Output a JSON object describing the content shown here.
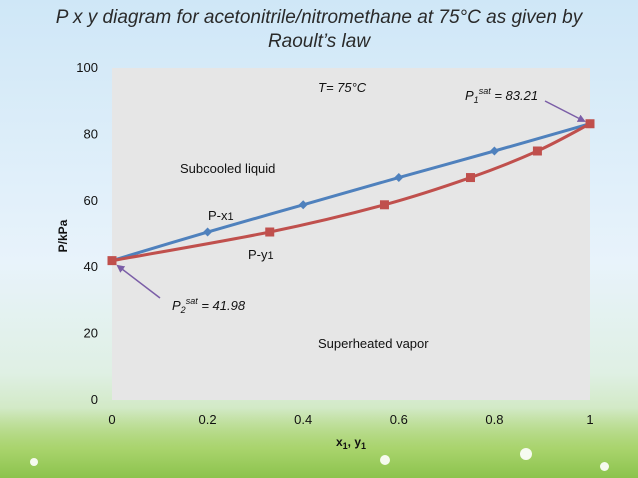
{
  "slide": {
    "title_line1": "P x y diagram for acetonitrile/nitromethane at 75°C as given by",
    "title_line2": "Raoult’s law"
  },
  "chart_data": {
    "type": "line",
    "ylabel": "P/kPa",
    "xlabel_base_1": "x",
    "xlabel_sub_1": "1",
    "xlabel_sep": ", ",
    "xlabel_base_2": "y",
    "xlabel_sub_2": "1",
    "xlim": [
      0,
      1
    ],
    "ylim": [
      0,
      100
    ],
    "x_ticks": [
      "0",
      "0.2",
      "0.4",
      "0.6",
      "0.8",
      "1"
    ],
    "y_ticks": [
      "0",
      "20",
      "40",
      "60",
      "80",
      "100"
    ],
    "grid": false,
    "series": [
      {
        "name": "P-x1",
        "color": "#4f81bd",
        "marker": "diamond",
        "points": [
          [
            0,
            41.98
          ],
          [
            0.2,
            50.6
          ],
          [
            0.4,
            58.8
          ],
          [
            0.6,
            67.0
          ],
          [
            0.8,
            75.0
          ],
          [
            1.0,
            83.21
          ]
        ]
      },
      {
        "name": "P-y1",
        "color": "#c0504d",
        "marker": "square",
        "points": [
          [
            0,
            41.98
          ],
          [
            0.33,
            50.6
          ],
          [
            0.57,
            58.8
          ],
          [
            0.75,
            67.0
          ],
          [
            0.89,
            75.0
          ],
          [
            1.0,
            83.21
          ]
        ]
      }
    ],
    "annotations": {
      "temperature": "T= 75°C",
      "subcooled": "Subcooled liquid",
      "superheated": "Superheated vapor",
      "label_px": "P-x",
      "label_px_sub": "1",
      "label_py": "P-y",
      "label_py_sub": "1",
      "p1sat_base": "P",
      "p1sat_sub": "1",
      "p1sat_sup": "sat",
      "p1sat_value": " = 83.21",
      "p2sat_base": "P",
      "p2sat_sub": "2",
      "p2sat_sup": "sat",
      "p2sat_value": " = 41.98"
    },
    "colors": {
      "plot_area": "#e6e6e6",
      "arrow": "#7b5ea7"
    }
  }
}
